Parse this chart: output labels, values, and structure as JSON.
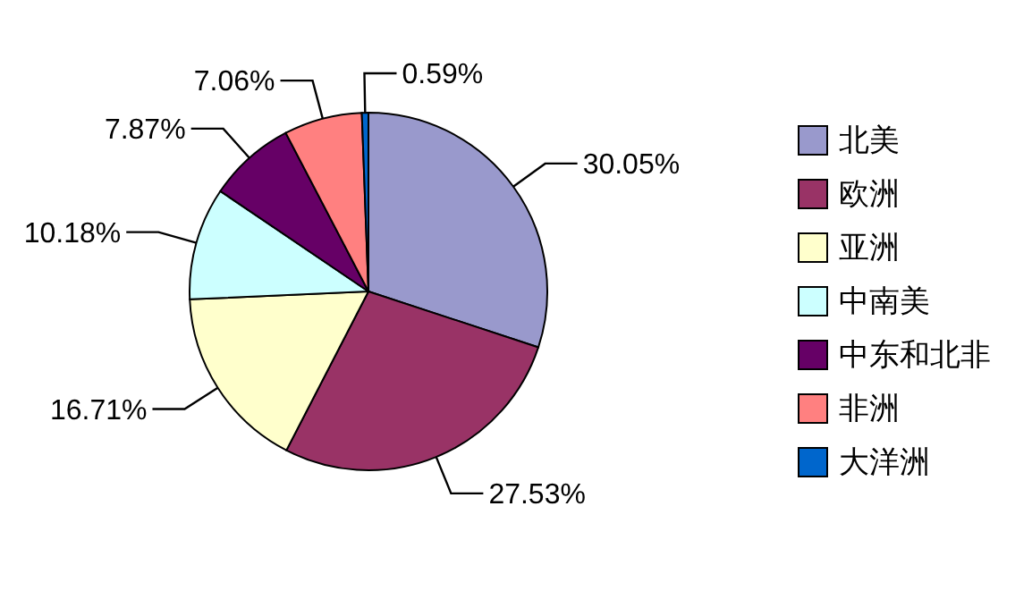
{
  "chart_data": {
    "type": "pie",
    "categories": [
      "北美",
      "欧洲",
      "亚洲",
      "中南美",
      "中东和北非",
      "非洲",
      "大洋洲"
    ],
    "values": [
      30.05,
      27.53,
      16.71,
      10.18,
      7.87,
      7.06,
      0.59
    ],
    "colors": [
      "#9999cc",
      "#993366",
      "#ffffcc",
      "#ccffff",
      "#660066",
      "#ff8080",
      "#0066cc"
    ],
    "value_labels": [
      "30.05%",
      "27.53%",
      "16.71%",
      "10.18%",
      "7.87%",
      "7.06%",
      "0.59%"
    ],
    "legend": "right"
  }
}
